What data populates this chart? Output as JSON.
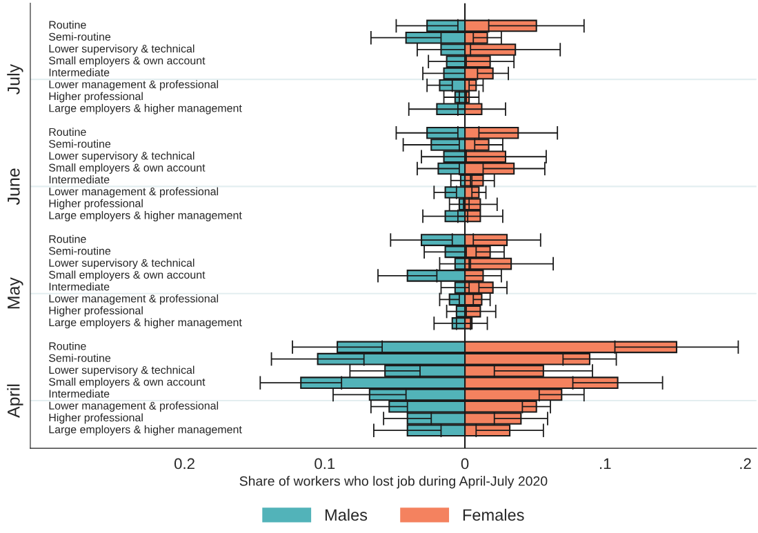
{
  "chart_data": {
    "type": "bar",
    "orientation": "horizontal",
    "stacked": true,
    "categories": [
      "Routine",
      "Semi-routine",
      "Lower supervisory & technical",
      "Small employers & own account",
      "Intermediate",
      "Lower management & professional",
      "Higher professional",
      "Large employers & higher management",
      "Routine",
      "Semi-routine",
      "Lower supervisory & technical",
      "Small employers & own account",
      "Intermediate",
      "Lower management & professional",
      "Higher professional",
      "Large employers & higher management",
      "Routine",
      "Semi-routine",
      "Lower supervisory & technical",
      "Small employers & own account",
      "Intermediate",
      "Lower management & professional",
      "Higher professional",
      "Large employers & higher management",
      "Routine",
      "Semi-routine",
      "Lower supervisory & technical",
      "Small employers & own account",
      "Intermediate",
      "Lower management & professional",
      "Higher professional",
      "Large employers & higher management"
    ],
    "series": [
      {
        "name": "Males",
        "color": "#52b3b9",
        "values": [
          -0.027,
          -0.042,
          -0.017,
          -0.013,
          -0.015,
          -0.018,
          -0.007,
          -0.02,
          -0.027,
          -0.024,
          -0.015,
          -0.019,
          -0.003,
          -0.014,
          -0.004,
          -0.014,
          -0.031,
          -0.014,
          -0.007,
          -0.041,
          -0.007,
          -0.011,
          -0.006,
          -0.009,
          -0.091,
          -0.105,
          -0.057,
          -0.117,
          -0.068,
          -0.054,
          -0.041,
          -0.041
        ],
        "errors": [
          0.022,
          0.025,
          0.017,
          0.013,
          0.015,
          0.009,
          0.008,
          0.02,
          0.022,
          0.02,
          0.016,
          0.015,
          0.007,
          0.008,
          0.007,
          0.016,
          0.022,
          0.015,
          0.011,
          0.021,
          0.01,
          0.007,
          0.007,
          0.013,
          0.032,
          0.033,
          0.025,
          0.029,
          0.026,
          0.013,
          0.017,
          0.024
        ]
      },
      {
        "name": "Females",
        "color": "#f4825f",
        "values": [
          0.051,
          0.016,
          0.036,
          0.018,
          0.02,
          0.008,
          0.003,
          0.012,
          0.038,
          0.017,
          0.029,
          0.035,
          0.013,
          0.01,
          0.011,
          0.011,
          0.03,
          0.018,
          0.033,
          0.013,
          0.02,
          0.012,
          0.011,
          0.005,
          0.151,
          0.089,
          0.056,
          0.109,
          0.069,
          0.051,
          0.04,
          0.032
        ],
        "errors": [
          0.034,
          0.01,
          0.032,
          0.017,
          0.011,
          0.005,
          0.007,
          0.017,
          0.028,
          0.01,
          0.029,
          0.022,
          0.008,
          0.005,
          0.012,
          0.016,
          0.024,
          0.01,
          0.03,
          0.013,
          0.01,
          0.006,
          0.011,
          0.011,
          0.044,
          0.019,
          0.035,
          0.032,
          0.016,
          0.01,
          0.019,
          0.024
        ]
      }
    ],
    "xlim": [
      -0.31,
      0.208
    ],
    "xticks": [
      {
        "value": -0.2,
        "label": "0.2"
      },
      {
        "value": -0.1,
        "label": "0.1"
      },
      0,
      {
        "value": 0.1,
        "label": ".1"
      },
      {
        "value": 0.2,
        "label": ".2"
      }
    ],
    "xlabel": "Share of workers who lost job during April-July 2020",
    "annotations": [
      "July",
      "June",
      "May",
      "April"
    ],
    "grid": "y",
    "legend": "bottom"
  }
}
